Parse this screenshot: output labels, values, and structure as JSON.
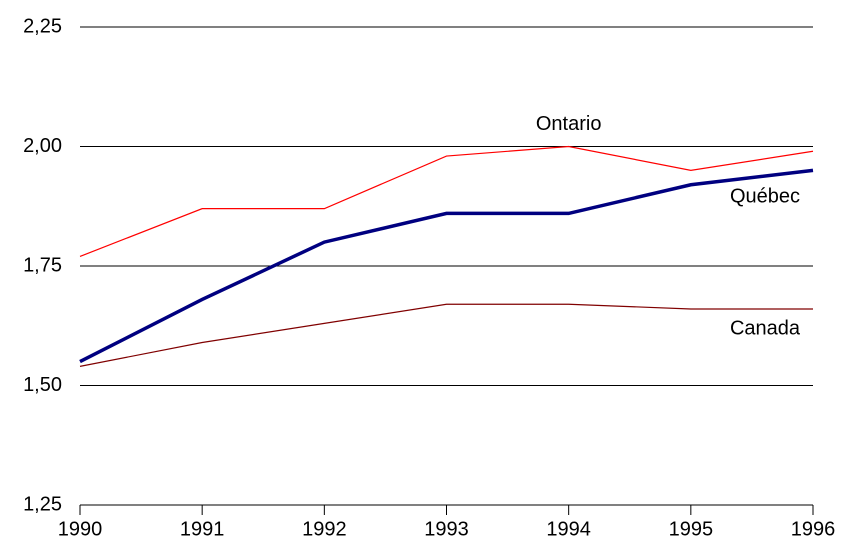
{
  "chart_data": {
    "type": "line",
    "x": [
      1990,
      1991,
      1992,
      1993,
      1994,
      1995,
      1996
    ],
    "xlim": [
      1990,
      1996
    ],
    "xticks": [
      1990,
      1991,
      1992,
      1993,
      1994,
      1995,
      1996
    ],
    "ylim": [
      1.25,
      2.25
    ],
    "yticks": [
      {
        "value": 1.25,
        "label": "1,25"
      },
      {
        "value": 1.5,
        "label": "1,50"
      },
      {
        "value": 1.75,
        "label": "1,75"
      },
      {
        "value": 2.0,
        "label": "2,00"
      },
      {
        "value": 2.25,
        "label": "2,25"
      }
    ],
    "grid": true,
    "series": [
      {
        "name": "Ontario",
        "color": "#ff0000",
        "values": [
          1.77,
          1.87,
          1.87,
          1.98,
          2.0,
          1.95,
          1.99
        ]
      },
      {
        "name": "Québec",
        "color": "#000080",
        "values": [
          1.55,
          1.68,
          1.8,
          1.86,
          1.86,
          1.92,
          1.95
        ]
      },
      {
        "name": "Canada",
        "color": "#800000",
        "values": [
          1.54,
          1.59,
          1.63,
          1.67,
          1.67,
          1.66,
          1.66
        ]
      }
    ]
  }
}
